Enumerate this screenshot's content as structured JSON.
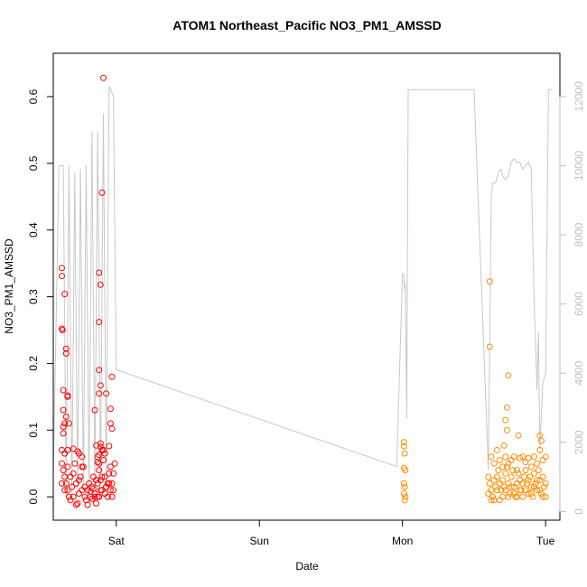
{
  "chart_data": {
    "type": "scatter",
    "title": "ATOM1 Northeast_Pacific NO3_PM1_AMSSD",
    "xlabel": "Date",
    "ylabel": "NO3_PM1_AMSSD",
    "x_ticks": [
      "Sat",
      "Sun",
      "Mon",
      "Tue"
    ],
    "x_tick_days": [
      1,
      2,
      3,
      4
    ],
    "x_range_days": [
      0.56,
      4.1
    ],
    "ylim": [
      -0.035,
      0.665
    ],
    "y_ticks": [
      0.0,
      0.1,
      0.2,
      0.3,
      0.4,
      0.5,
      0.6
    ],
    "y2lim": [
      -250,
      13250
    ],
    "y2_ticks": [
      0,
      2000,
      4000,
      6000,
      8000,
      10000,
      12000
    ],
    "colors": {
      "series1": "#ff0000",
      "series2": "#ff8c00",
      "altitude": "#c8c8c8",
      "axis": "#000000",
      "axis_right": "#bfbfbf"
    },
    "series": [
      {
        "color": "#ff0000",
        "points": [
          [
            0.62,
            0.343
          ],
          [
            0.62,
            0.331
          ],
          [
            0.62,
            0.252
          ],
          [
            0.625,
            0.25
          ],
          [
            0.64,
            0.304
          ],
          [
            0.65,
            0.222
          ],
          [
            0.65,
            0.215
          ],
          [
            0.66,
            0.152
          ],
          [
            0.66,
            0.15
          ],
          [
            0.63,
            0.16
          ],
          [
            0.63,
            0.13
          ],
          [
            0.64,
            0.11
          ],
          [
            0.65,
            0.12
          ],
          [
            0.63,
            0.105
          ],
          [
            0.63,
            0.095
          ],
          [
            0.67,
            0.11
          ],
          [
            0.7,
            0.072
          ],
          [
            0.62,
            0.07
          ],
          [
            0.64,
            0.065
          ],
          [
            0.66,
            0.07
          ],
          [
            0.62,
            0.05
          ],
          [
            0.63,
            0.04
          ],
          [
            0.64,
            0.03
          ],
          [
            0.65,
            0.02
          ],
          [
            0.66,
            0.01
          ],
          [
            0.67,
            0.0
          ],
          [
            0.68,
            -0.005
          ],
          [
            0.69,
            0.015
          ],
          [
            0.7,
            0.035
          ],
          [
            0.71,
            0.05
          ],
          [
            0.72,
            0.02
          ],
          [
            0.73,
            -0.01
          ],
          [
            0.74,
            0.005
          ],
          [
            0.75,
            0.03
          ],
          [
            0.76,
            0.06
          ],
          [
            0.77,
            0.045
          ],
          [
            0.78,
            0.015
          ],
          [
            0.79,
            -0.005
          ],
          [
            0.8,
            0.01
          ],
          [
            0.81,
            0.02
          ],
          [
            0.82,
            0.0
          ],
          [
            0.83,
            0.015
          ],
          [
            0.84,
            0.03
          ],
          [
            0.85,
            0.005
          ],
          [
            0.86,
            -0.01
          ],
          [
            0.87,
            0.02
          ],
          [
            0.88,
            0.04
          ],
          [
            0.89,
            0.025
          ],
          [
            0.9,
            0.01
          ],
          [
            0.91,
            0.055
          ],
          [
            0.92,
            0.03
          ],
          [
            0.93,
            0.015
          ],
          [
            0.94,
            0.0
          ],
          [
            0.95,
            0.035
          ],
          [
            0.96,
            0.045
          ],
          [
            0.97,
            0.02
          ],
          [
            0.98,
            0.01
          ],
          [
            0.99,
            0.05
          ],
          [
            0.62,
            0.02
          ],
          [
            0.64,
            0.01
          ],
          [
            0.66,
            0.045
          ],
          [
            0.68,
            0.03
          ],
          [
            0.7,
            0.0
          ],
          [
            0.72,
            -0.012
          ],
          [
            0.74,
            0.025
          ],
          [
            0.76,
            0.01
          ],
          [
            0.78,
            0.0
          ],
          [
            0.8,
            -0.012
          ],
          [
            0.82,
            0.008
          ],
          [
            0.84,
            0.012
          ],
          [
            0.86,
            0.025
          ],
          [
            0.88,
            0.0
          ],
          [
            0.9,
            0.03
          ],
          [
            0.92,
            0.005
          ],
          [
            0.94,
            0.02
          ],
          [
            0.96,
            0.01
          ],
          [
            0.98,
            0.035
          ],
          [
            0.73,
            0.068
          ],
          [
            0.74,
            0.065
          ],
          [
            0.76,
            0.045
          ],
          [
            0.85,
            0.13
          ],
          [
            0.86,
            0.077
          ],
          [
            0.87,
            0.06
          ],
          [
            0.87,
            0.052
          ],
          [
            0.88,
            0.05
          ],
          [
            0.88,
            0.063
          ],
          [
            0.89,
            0.075
          ],
          [
            0.89,
            0.08
          ],
          [
            0.9,
            0.07
          ],
          [
            0.91,
            0.07
          ],
          [
            0.92,
            0.065
          ],
          [
            0.95,
            0.076
          ],
          [
            0.96,
            0.132
          ],
          [
            0.96,
            0.11
          ],
          [
            0.97,
            0.102
          ],
          [
            0.97,
            0.18
          ],
          [
            0.88,
            0.19
          ],
          [
            0.88,
            0.155
          ],
          [
            0.89,
            0.167
          ],
          [
            0.88,
            0.262
          ],
          [
            0.88,
            0.336
          ],
          [
            0.89,
            0.318
          ],
          [
            0.9,
            0.456
          ],
          [
            0.93,
            0.155
          ],
          [
            0.91,
            0.628
          ],
          [
            0.85,
            0.0
          ],
          [
            0.83,
            -0.003
          ],
          [
            0.87,
            0.0
          ],
          [
            0.89,
            0.01
          ],
          [
            0.93,
            0.015
          ],
          [
            0.95,
            0.02
          ],
          [
            0.97,
            0.0
          ]
        ]
      },
      {
        "color": "#ff8c00",
        "points": [
          [
            3.01,
            0.082
          ],
          [
            3.01,
            0.076
          ],
          [
            3.015,
            0.065
          ],
          [
            3.01,
            0.043
          ],
          [
            3.02,
            0.04
          ],
          [
            3.01,
            0.02
          ],
          [
            3.015,
            0.015
          ],
          [
            3.01,
            0.005
          ],
          [
            3.02,
            0.0
          ],
          [
            3.015,
            -0.005
          ],
          [
            3.61,
            0.323
          ],
          [
            3.61,
            0.225
          ],
          [
            3.74,
            0.182
          ],
          [
            3.73,
            0.134
          ],
          [
            3.72,
            0.115
          ],
          [
            3.73,
            0.1
          ],
          [
            3.71,
            0.077
          ],
          [
            3.81,
            0.092
          ],
          [
            3.96,
            0.092
          ],
          [
            3.97,
            0.084
          ],
          [
            3.62,
            0.06
          ],
          [
            3.64,
            0.05
          ],
          [
            3.66,
            0.07
          ],
          [
            3.68,
            0.055
          ],
          [
            3.7,
            0.045
          ],
          [
            3.72,
            0.06
          ],
          [
            3.74,
            0.05
          ],
          [
            3.76,
            0.055
          ],
          [
            3.78,
            0.06
          ],
          [
            3.8,
            0.04
          ],
          [
            3.82,
            0.058
          ],
          [
            3.84,
            0.06
          ],
          [
            3.86,
            0.052
          ],
          [
            3.88,
            0.058
          ],
          [
            3.9,
            0.045
          ],
          [
            3.92,
            0.06
          ],
          [
            3.94,
            0.05
          ],
          [
            3.96,
            0.07
          ],
          [
            3.98,
            0.055
          ],
          [
            4.0,
            0.06
          ],
          [
            3.6,
            0.03
          ],
          [
            3.61,
            0.02
          ],
          [
            3.62,
            0.01
          ],
          [
            3.63,
            0.0
          ],
          [
            3.64,
            -0.005
          ],
          [
            3.65,
            0.015
          ],
          [
            3.66,
            0.03
          ],
          [
            3.67,
            0.04
          ],
          [
            3.68,
            0.02
          ],
          [
            3.69,
            0.01
          ],
          [
            3.7,
            0.0
          ],
          [
            3.71,
            0.015
          ],
          [
            3.72,
            0.035
          ],
          [
            3.73,
            0.045
          ],
          [
            3.74,
            0.02
          ],
          [
            3.75,
            0.005
          ],
          [
            3.76,
            0.03
          ],
          [
            3.77,
            0.04
          ],
          [
            3.78,
            0.015
          ],
          [
            3.79,
            0.0
          ],
          [
            3.8,
            0.02
          ],
          [
            3.81,
            0.035
          ],
          [
            3.82,
            0.025
          ],
          [
            3.83,
            0.01
          ],
          [
            3.84,
            0.0
          ],
          [
            3.85,
            0.03
          ],
          [
            3.86,
            0.04
          ],
          [
            3.87,
            0.02
          ],
          [
            3.88,
            0.005
          ],
          [
            3.89,
            0.03
          ],
          [
            3.9,
            0.015
          ],
          [
            3.91,
            0.0
          ],
          [
            3.92,
            0.035
          ],
          [
            3.93,
            0.02
          ],
          [
            3.94,
            0.01
          ],
          [
            3.95,
            0.04
          ],
          [
            3.96,
            0.025
          ],
          [
            3.97,
            0.005
          ],
          [
            3.98,
            0.03
          ],
          [
            3.99,
            0.015
          ],
          [
            4.0,
            0.0
          ],
          [
            3.6,
            0.005
          ],
          [
            3.62,
            -0.005
          ],
          [
            3.64,
            0.025
          ],
          [
            3.66,
            0.01
          ],
          [
            3.68,
            -0.005
          ],
          [
            3.7,
            0.025
          ],
          [
            3.72,
            0.01
          ],
          [
            3.74,
            0.0
          ],
          [
            3.76,
            0.015
          ],
          [
            3.78,
            0.005
          ],
          [
            3.8,
            0.0
          ],
          [
            3.82,
            0.01
          ],
          [
            3.84,
            0.02
          ],
          [
            3.86,
            0.01
          ],
          [
            3.88,
            0.025
          ],
          [
            3.9,
            0.005
          ],
          [
            3.92,
            0.015
          ],
          [
            3.94,
            0.025
          ],
          [
            3.96,
            0.01
          ],
          [
            3.98,
            0.0
          ],
          [
            4.0,
            0.02
          ]
        ]
      }
    ],
    "altitude_line": {
      "name": "",
      "points": [
        [
          0.56,
          1000
        ],
        [
          0.6,
          10000
        ],
        [
          0.63,
          10000
        ],
        [
          0.65,
          400
        ],
        [
          0.67,
          10000
        ],
        [
          0.69,
          500
        ],
        [
          0.71,
          9800
        ],
        [
          0.73,
          500
        ],
        [
          0.75,
          9900
        ],
        [
          0.77,
          600
        ],
        [
          0.79,
          10000
        ],
        [
          0.81,
          500
        ],
        [
          0.83,
          11000
        ],
        [
          0.85,
          700
        ],
        [
          0.87,
          11000
        ],
        [
          0.89,
          800
        ],
        [
          0.91,
          11500
        ],
        [
          0.93,
          900
        ],
        [
          0.95,
          12300
        ],
        [
          0.98,
          12000
        ],
        [
          1.0,
          4100
        ],
        [
          2.96,
          1300
        ],
        [
          3.0,
          6900
        ],
        [
          3.01,
          6800
        ],
        [
          3.015,
          6400
        ],
        [
          3.02,
          6600
        ],
        [
          3.03,
          2700
        ],
        [
          3.04,
          12200
        ],
        [
          3.5,
          12200
        ],
        [
          3.6,
          1200
        ],
        [
          3.62,
          9000
        ],
        [
          3.63,
          9500
        ],
        [
          3.65,
          9500
        ],
        [
          3.67,
          9800
        ],
        [
          3.69,
          9900
        ],
        [
          3.7,
          9700
        ],
        [
          3.72,
          9600
        ],
        [
          3.74,
          9700
        ],
        [
          3.76,
          10100
        ],
        [
          3.78,
          10200
        ],
        [
          3.8,
          10100
        ],
        [
          3.82,
          10100
        ],
        [
          3.84,
          9900
        ],
        [
          3.86,
          10000
        ],
        [
          3.88,
          10100
        ],
        [
          3.9,
          9900
        ],
        [
          3.92,
          6000
        ],
        [
          3.93,
          4800
        ],
        [
          3.94,
          3500
        ],
        [
          3.95,
          5200
        ],
        [
          3.96,
          1800
        ],
        [
          3.98,
          3700
        ],
        [
          4.0,
          4000
        ],
        [
          4.02,
          12200
        ],
        [
          4.05,
          12200
        ]
      ]
    }
  }
}
